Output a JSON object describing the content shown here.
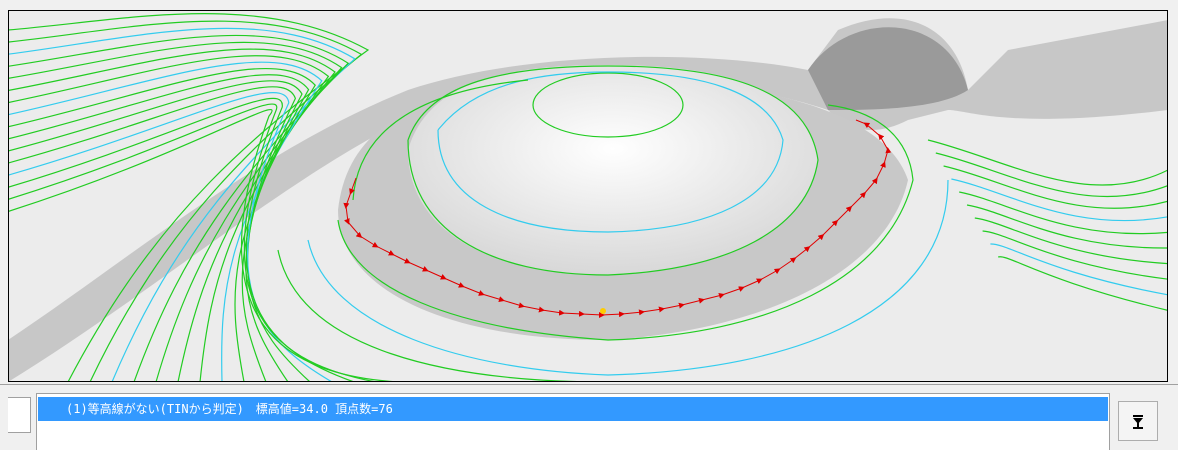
{
  "list": {
    "items": [
      "(1)等高線がない(TINから判定)　標高値=34.0 頂点数=76"
    ]
  }
}
